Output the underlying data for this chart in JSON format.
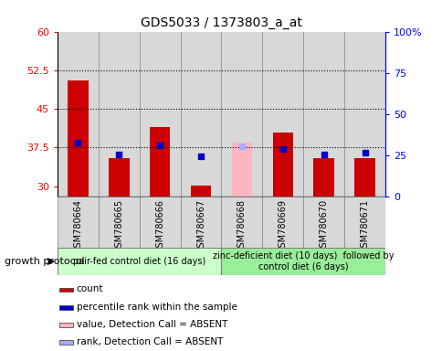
{
  "title": "GDS5033 / 1373803_a_at",
  "samples": [
    "GSM780664",
    "GSM780665",
    "GSM780666",
    "GSM780667",
    "GSM780668",
    "GSM780669",
    "GSM780670",
    "GSM780671"
  ],
  "count_values": [
    50.5,
    35.5,
    41.5,
    30.2,
    null,
    40.5,
    35.5,
    35.5
  ],
  "rank_values": [
    38.5,
    36.2,
    38.0,
    35.8,
    null,
    37.3,
    36.2,
    36.5
  ],
  "absent_count_values": [
    null,
    null,
    null,
    null,
    38.5,
    null,
    null,
    null
  ],
  "absent_rank_values": [
    null,
    null,
    null,
    null,
    37.8,
    null,
    null,
    null
  ],
  "ylim_left": [
    28,
    60
  ],
  "ylim_right": [
    0,
    100
  ],
  "yticks_left": [
    30,
    37.5,
    45,
    52.5,
    60
  ],
  "yticks_right": [
    0,
    25,
    50,
    75,
    100
  ],
  "ytick_labels_left": [
    "30",
    "37.5",
    "45",
    "52.5",
    "60"
  ],
  "ytick_labels_right": [
    "0",
    "25",
    "50",
    "75",
    "100%"
  ],
  "hlines": [
    37.5,
    45,
    52.5
  ],
  "group1_label": "pair-fed control diet (16 days)",
  "group2_label": "zinc-deficient diet (10 days)  followed by\ncontrol diet (6 days)",
  "growth_protocol_label": "growth protocol",
  "bar_bottom": 28,
  "bar_width": 0.25,
  "count_color": "#cc0000",
  "rank_color": "#0000cc",
  "absent_count_color": "#ffb6c1",
  "absent_rank_color": "#aaaaff",
  "group1_bg": "#ccffcc",
  "group2_bg": "#99ee99",
  "sample_bg": "#d8d8d8",
  "legend_items": [
    {
      "color": "#cc0000",
      "label": "count"
    },
    {
      "color": "#0000cc",
      "label": "percentile rank within the sample"
    },
    {
      "color": "#ffb6c1",
      "label": "value, Detection Call = ABSENT"
    },
    {
      "color": "#aaaaff",
      "label": "rank, Detection Call = ABSENT"
    }
  ]
}
